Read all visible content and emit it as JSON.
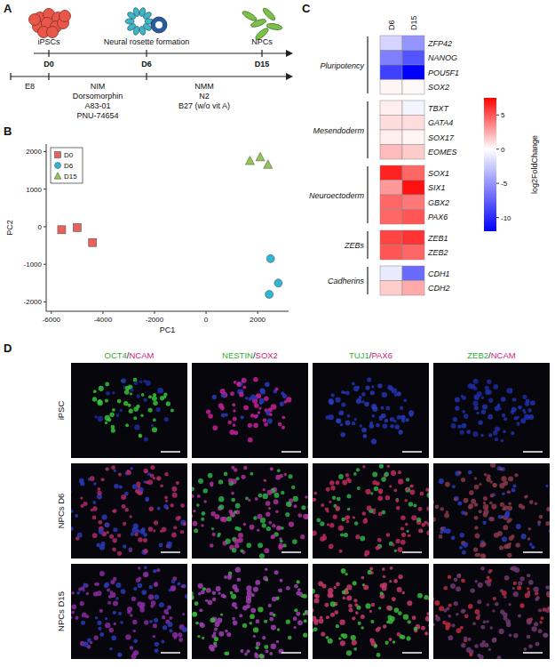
{
  "schematic": {
    "panel": "A",
    "stages": [
      {
        "name": "iPSCs",
        "day": "D0"
      },
      {
        "name": "Neural rosette formation",
        "day": "D6"
      },
      {
        "name": "NPCs",
        "day": "D15"
      }
    ],
    "media": [
      {
        "lines": [
          "E8"
        ]
      },
      {
        "lines": [
          "NIM",
          "Dorsomorphin",
          "A83-01",
          "PNU-74654"
        ]
      },
      {
        "lines": [
          "NMM",
          "N2",
          "B27 (w/o vit A)"
        ]
      }
    ]
  },
  "chart_data": [
    {
      "panel": "B",
      "type": "scatter",
      "x_label": "PC1",
      "y_label": "PC2",
      "xlim": [
        -6200,
        3200
      ],
      "ylim": [
        -2250,
        2200
      ],
      "xticks": [
        -6000,
        -4000,
        -2000,
        0,
        2000
      ],
      "yticks": [
        -2000,
        -1000,
        0,
        1000,
        2000
      ],
      "legend": "top-left",
      "grid": false,
      "series": [
        {
          "name": "D0",
          "color": "#e8625c",
          "marker": "square",
          "x": [
            -5600,
            -5000,
            -4400
          ],
          "values": [
            -80,
            -20,
            -420
          ]
        },
        {
          "name": "D6",
          "color": "#2fb8d6",
          "marker": "circle",
          "x": [
            2500,
            2800,
            2450
          ],
          "values": [
            -850,
            -1500,
            -1800
          ]
        },
        {
          "name": "D15",
          "color": "#8fc94f",
          "marker": "triangle",
          "x": [
            1700,
            2100,
            2400
          ],
          "values": [
            1750,
            1850,
            1650
          ]
        }
      ]
    },
    {
      "panel": "C",
      "type": "heatmap",
      "columns": [
        "D6",
        "D15"
      ],
      "groups": [
        {
          "name": "Pluripotency",
          "rows": [
            "ZFP42",
            "NANOG",
            "POU5F1",
            "SOX2"
          ],
          "values": [
            [
              -2,
              -5
            ],
            [
              -6,
              -8
            ],
            [
              -9,
              -12
            ],
            [
              0.3,
              0.2
            ]
          ]
        },
        {
          "name": "Mesendoderm",
          "rows": [
            "TBXT",
            "GATA4",
            "SOX17",
            "EOMES"
          ],
          "values": [
            [
              0.5,
              -0.5
            ],
            [
              1,
              1
            ],
            [
              0.5,
              0.3
            ],
            [
              2,
              1.5
            ]
          ]
        },
        {
          "name": "Neuroectoderm",
          "rows": [
            "SOX1",
            "SIX1",
            "GBX2",
            "PAX6"
          ],
          "values": [
            [
              6.5,
              4.5
            ],
            [
              3,
              7
            ],
            [
              4.5,
              4
            ],
            [
              4.5,
              5
            ]
          ]
        },
        {
          "name": "ZEBs",
          "rows": [
            "ZEB1",
            "ZEB2"
          ],
          "values": [
            [
              5.5,
              6
            ],
            [
              5,
              4.5
            ]
          ]
        },
        {
          "name": "Cadherins",
          "rows": [
            "CDH1",
            "CDH2"
          ],
          "values": [
            [
              -1,
              -7
            ],
            [
              1.5,
              2.5
            ]
          ]
        }
      ],
      "colorbar": {
        "title": "log2FoldChange",
        "range": [
          -12,
          7.5
        ],
        "ticks": [
          5,
          0,
          -5,
          -10
        ],
        "colors": [
          "#0000ff",
          "#ffffff",
          "#ff0000"
        ]
      }
    }
  ],
  "micrographs": {
    "panel": "D",
    "columns": [
      "OCT4/NCAM",
      "NESTIN/SOX2",
      "TUJ1/PAX6",
      "ZEB2/NCAM"
    ],
    "rows": [
      "iPSC",
      "NPCs D6",
      "NPCs D15"
    ]
  }
}
